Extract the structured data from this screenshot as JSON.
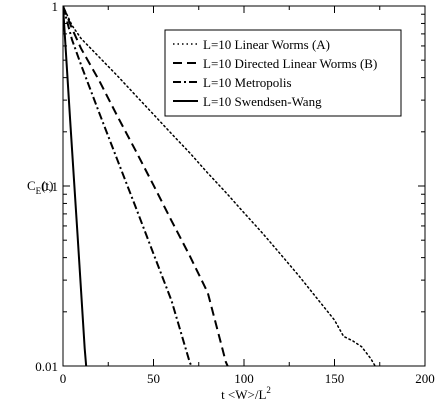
{
  "chart_data": {
    "type": "line",
    "title": "",
    "xlabel_main": "t <W>/L",
    "xlabel_sup": "2",
    "ylabel_main": "C",
    "ylabel_sub": "E",
    "ylabel_suffix": "(t)",
    "xlim": [
      0,
      200
    ],
    "ylim": [
      0.01,
      1
    ],
    "yscale": "log",
    "grid": false,
    "legend_position": "top-right",
    "x_ticks": [
      0,
      50,
      100,
      150,
      200
    ],
    "x_tick_labels": [
      "0",
      "50",
      "100",
      "150",
      "200"
    ],
    "y_ticks": [
      0.01,
      0.1,
      1
    ],
    "y_tick_labels": [
      "0.01",
      "0.1",
      "1"
    ],
    "series": [
      {
        "name": "L=10 Linear Worms (A)",
        "dash": "dotted",
        "color": "#000000",
        "points": [
          [
            0,
            1.0
          ],
          [
            5,
            0.78
          ],
          [
            10,
            0.66
          ],
          [
            20,
            0.52
          ],
          [
            30,
            0.41
          ],
          [
            40,
            0.32
          ],
          [
            50,
            0.25
          ],
          [
            60,
            0.195
          ],
          [
            70,
            0.153
          ],
          [
            80,
            0.118
          ],
          [
            90,
            0.092
          ],
          [
            100,
            0.071
          ],
          [
            110,
            0.055
          ],
          [
            120,
            0.042
          ],
          [
            130,
            0.032
          ],
          [
            140,
            0.024
          ],
          [
            150,
            0.018
          ],
          [
            155,
            0.0146
          ],
          [
            160,
            0.0138
          ],
          [
            165,
            0.0128
          ],
          [
            170,
            0.011
          ],
          [
            173,
            0.0098
          ]
        ]
      },
      {
        "name": "L=10 Directed Linear Worms (B)",
        "dash": "dashed",
        "color": "#000000",
        "points": [
          [
            0,
            1.0
          ],
          [
            5,
            0.75
          ],
          [
            10,
            0.58
          ],
          [
            20,
            0.385
          ],
          [
            30,
            0.245
          ],
          [
            40,
            0.158
          ],
          [
            50,
            0.101
          ],
          [
            60,
            0.064
          ],
          [
            70,
            0.041
          ],
          [
            80,
            0.0255
          ],
          [
            90,
            0.0105
          ],
          [
            92,
            0.0095
          ]
        ]
      },
      {
        "name": "L=10 Metropolis",
        "dash": "dash-dot",
        "color": "#000000",
        "points": [
          [
            0,
            1.0
          ],
          [
            5,
            0.65
          ],
          [
            10,
            0.47
          ],
          [
            20,
            0.255
          ],
          [
            30,
            0.14
          ],
          [
            40,
            0.077
          ],
          [
            50,
            0.042
          ],
          [
            60,
            0.023
          ],
          [
            70,
            0.0105
          ],
          [
            72,
            0.0095
          ]
        ]
      },
      {
        "name": "L=10 Swendsen-Wang",
        "dash": "solid",
        "color": "#000000",
        "points": [
          [
            0,
            1.0
          ],
          [
            2,
            0.48
          ],
          [
            4,
            0.23
          ],
          [
            6,
            0.11
          ],
          [
            8,
            0.054
          ],
          [
            10,
            0.026
          ],
          [
            12,
            0.0125
          ],
          [
            13,
            0.0095
          ]
        ]
      }
    ]
  }
}
